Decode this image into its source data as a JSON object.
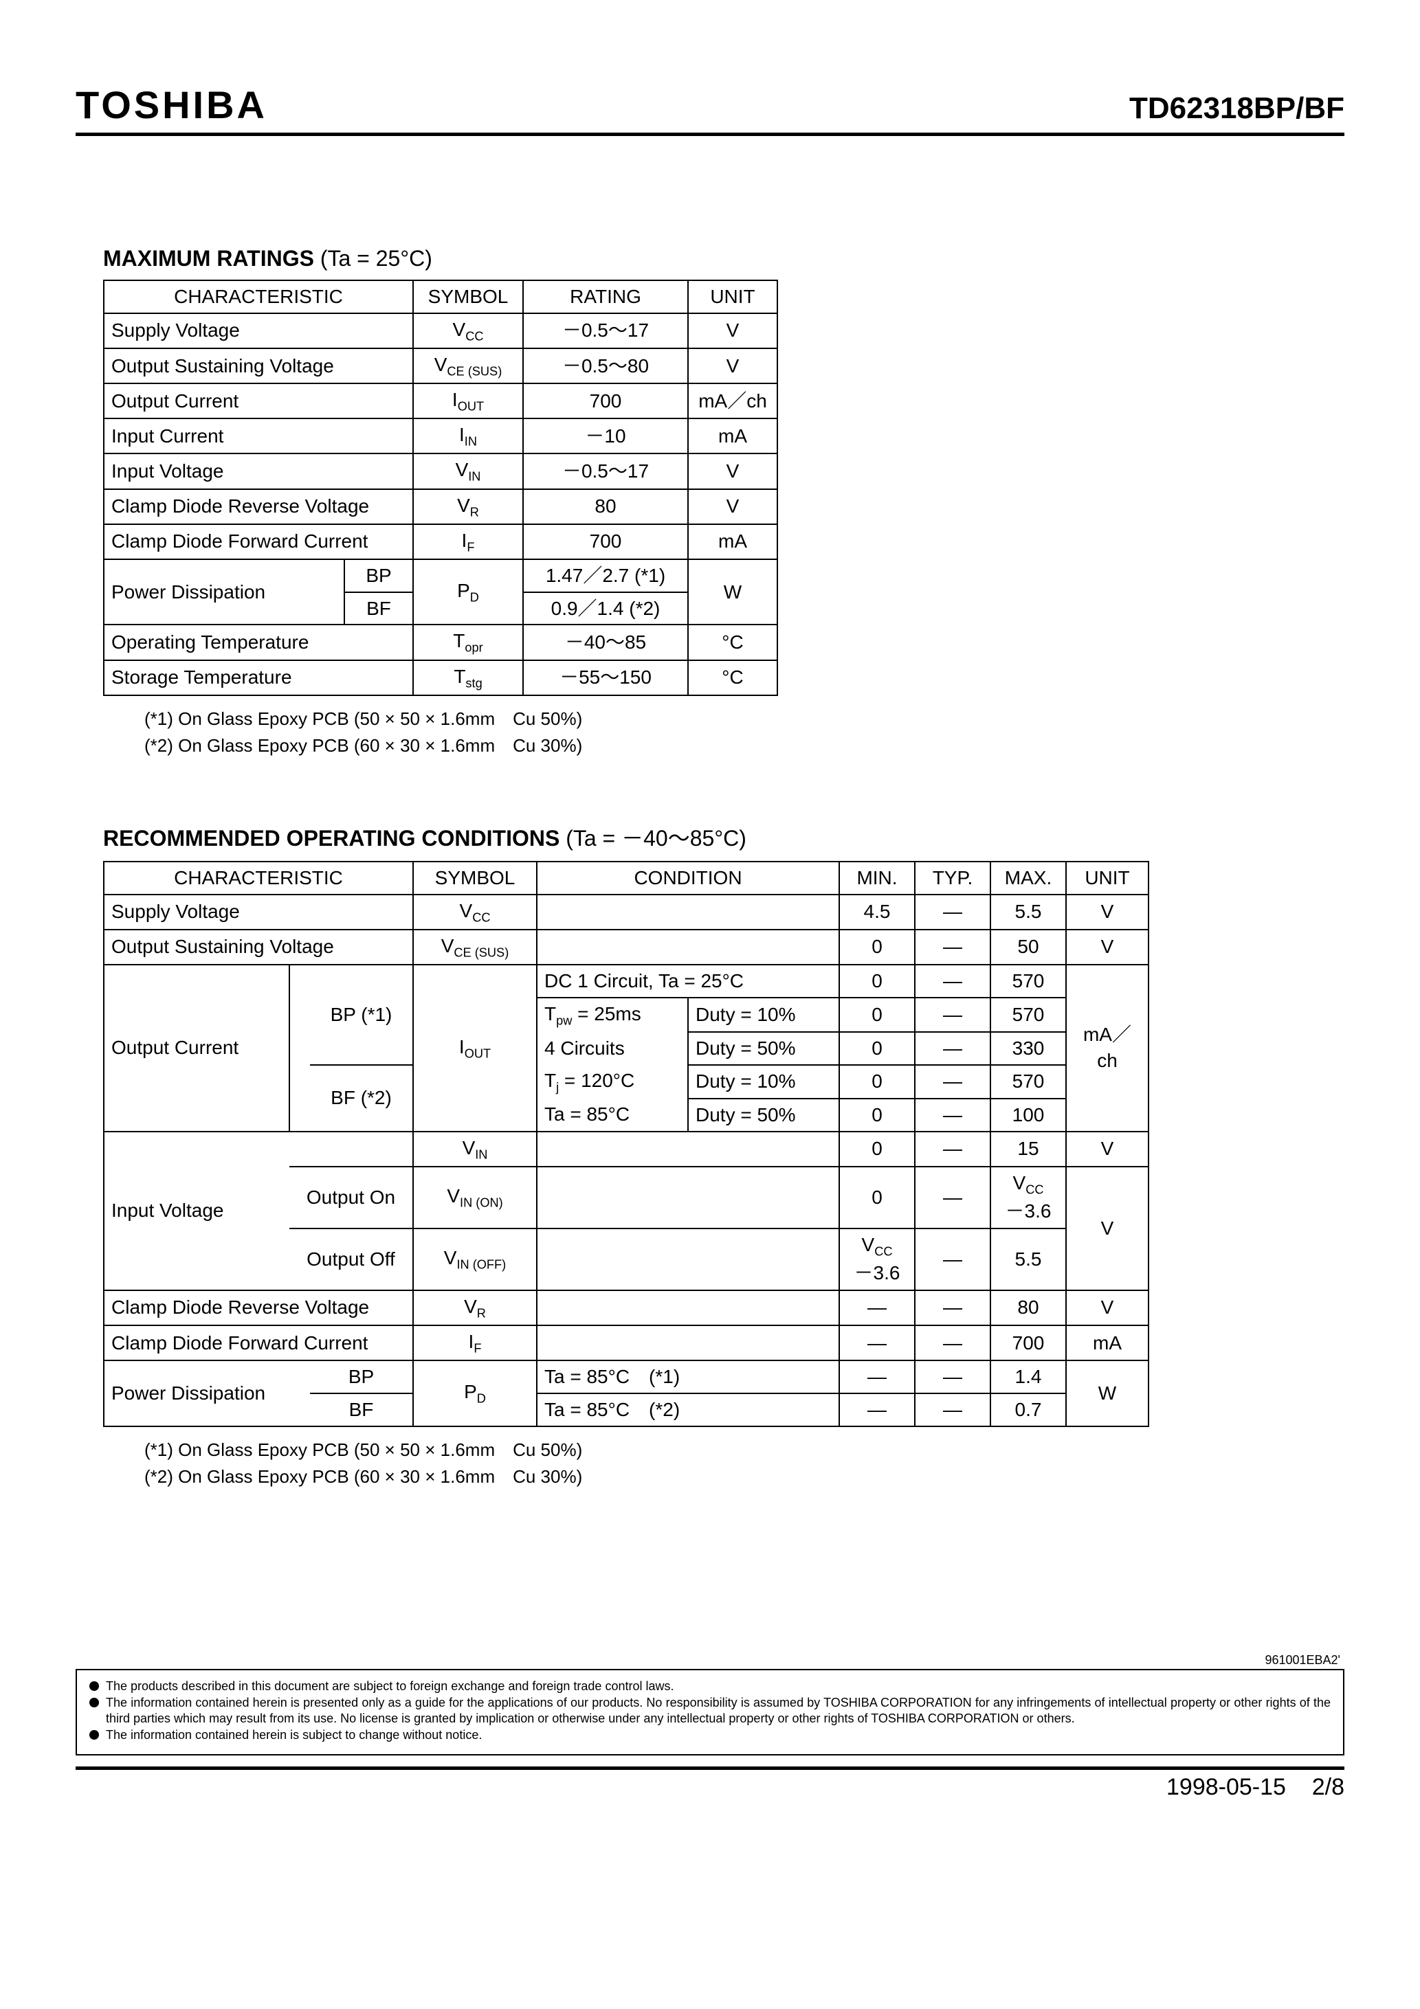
{
  "header": {
    "brand": "TOSHIBA",
    "part": "TD62318BP/BF"
  },
  "sec1": {
    "title": "MAXIMUM RATINGS",
    "cond": "(Ta = 25°C)",
    "cols": [
      "CHARACTERISTIC",
      "SYMBOL",
      "RATING",
      "UNIT"
    ],
    "rows": {
      "supply": {
        "c": "Supply Voltage",
        "s": "V<sub>CC</sub>",
        "r": "－0.5～17",
        "u": "V"
      },
      "vcesus": {
        "c": "Output Sustaining Voltage",
        "s": "V<sub>CE (SUS)</sub>",
        "r": "－0.5～80",
        "u": "V"
      },
      "iout": {
        "c": "Output Current",
        "s": "I<sub>OUT</sub>",
        "r": "700",
        "u": "mA／ch"
      },
      "iin": {
        "c": "Input Current",
        "s": "I<sub>IN</sub>",
        "r": "－10",
        "u": "mA"
      },
      "vin": {
        "c": "Input Voltage",
        "s": "V<sub>IN</sub>",
        "r": "－0.5～17",
        "u": "V"
      },
      "vr": {
        "c": "Clamp Diode Reverse Voltage",
        "s": "V<sub>R</sub>",
        "r": "80",
        "u": "V"
      },
      "if": {
        "c": "Clamp Diode Forward Current",
        "s": "I<sub>F</sub>",
        "r": "700",
        "u": "mA"
      },
      "pd": {
        "c": "Power Dissipation",
        "bp": "BP",
        "bf": "BF",
        "s": "P<sub>D</sub>",
        "r1": "1.47／2.7 (*1)",
        "r2": "0.9／1.4 (*2)",
        "u": "W"
      },
      "topr": {
        "c": "Operating Temperature",
        "s": "T<sub>opr</sub>",
        "r": "－40～85",
        "u": "°C"
      },
      "tstg": {
        "c": "Storage Temperature",
        "s": "T<sub>stg</sub>",
        "r": "－55～150",
        "u": "°C"
      }
    },
    "note1": "(*1) On Glass Epoxy PCB (50 × 50 × 1.6mm　Cu 50%)",
    "note2": "(*2) On Glass Epoxy PCB (60 × 30 × 1.6mm　Cu 30%)"
  },
  "sec2": {
    "title": "RECOMMENDED OPERATING CONDITIONS",
    "cond": "(Ta = －40～85°C)",
    "cols": [
      "CHARACTERISTIC",
      "SYMBOL",
      "CONDITION",
      "MIN.",
      "TYP.",
      "MAX.",
      "UNIT"
    ],
    "supply": {
      "c": "Supply Voltage",
      "s": "V<sub>CC</sub>",
      "min": "4.5",
      "typ": "―",
      "max": "5.5",
      "u": "V"
    },
    "vcesus": {
      "c": "Output Sustaining Voltage",
      "s": "V<sub>CE (SUS)</sub>",
      "min": "0",
      "typ": "―",
      "max": "50",
      "u": "V"
    },
    "iout": {
      "c": "Output Current",
      "bp": "BP (*1)",
      "bf": "BF (*2)",
      "s": "I<sub>OUT</sub>",
      "u": "mA／ch",
      "row1": {
        "cond": "DC  1 Circuit, Ta = 25°C",
        "min": "0",
        "typ": "―",
        "max": "570"
      },
      "row2": {
        "ca": "T<sub>pw</sub> = 25ms",
        "cb": "Duty = 10%",
        "min": "0",
        "typ": "―",
        "max": "570"
      },
      "row3": {
        "ca": "4 Circuits",
        "cb": "Duty = 50%",
        "min": "0",
        "typ": "―",
        "max": "330"
      },
      "row4": {
        "ca": "T<sub>j</sub> = 120°C",
        "cb": "Duty = 10%",
        "min": "0",
        "typ": "―",
        "max": "570"
      },
      "row5": {
        "ca": "Ta = 85°C",
        "cb": "Duty = 50%",
        "min": "0",
        "typ": "―",
        "max": "100"
      }
    },
    "vin": {
      "c": "Input Voltage",
      "r1": {
        "s": "V<sub>IN</sub>",
        "min": "0",
        "typ": "―",
        "max": "15",
        "u": "V"
      },
      "r2": {
        "sub": "Output On",
        "s": "V<sub>IN (ON)</sub>",
        "min": "0",
        "typ": "―",
        "max": "V<sub>CC</sub><br>－3.6",
        "u": "V"
      },
      "r3": {
        "sub": "Output Off",
        "s": "V<sub>IN (OFF)</sub>",
        "min": "V<sub>CC</sub><br>－3.6",
        "typ": "―",
        "max": "5.5"
      }
    },
    "vr": {
      "c": "Clamp Diode Reverse Voltage",
      "s": "V<sub>R</sub>",
      "min": "―",
      "typ": "―",
      "max": "80",
      "u": "V"
    },
    "iff": {
      "c": "Clamp Diode Forward Current",
      "s": "I<sub>F</sub>",
      "min": "―",
      "typ": "―",
      "max": "700",
      "u": "mA"
    },
    "pd": {
      "c": "Power Dissipation",
      "bp": "BP",
      "bf": "BF",
      "s": "P<sub>D</sub>",
      "r1": {
        "cond": "Ta = 85°C　(*1)",
        "min": "―",
        "typ": "―",
        "max": "1.4"
      },
      "r2": {
        "cond": "Ta = 85°C　(*2)",
        "min": "―",
        "typ": "―",
        "max": "0.7"
      },
      "u": "W"
    },
    "note1": "(*1) On Glass Epoxy PCB (50 × 50 × 1.6mm　Cu 50%)",
    "note2": "(*2) On Glass Epoxy PCB (60 × 30 × 1.6mm　Cu 30%)"
  },
  "disclaimer": {
    "docrev": "961001EBA2'",
    "l1": "The products described in this document are subject to foreign exchange and foreign trade control laws.",
    "l2": "The information contained herein is presented only as a guide for the applications of our products. No responsibility is assumed by TOSHIBA CORPORATION for any infringements of intellectual property or other rights of the third parties which may result from its use. No license is granted by implication or otherwise under any intellectual property or other rights of TOSHIBA CORPORATION or others.",
    "l3": "The information contained herein is subject to change without notice."
  },
  "footer": {
    "date": "1998-05-15",
    "page": "2/8"
  }
}
